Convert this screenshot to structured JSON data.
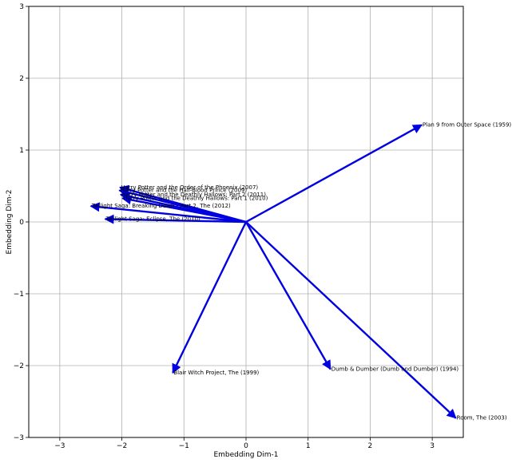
{
  "chart_data": {
    "type": "scatter",
    "title": "",
    "xlabel": "Embedding Dim-1",
    "ylabel": "Embedding Dim-2",
    "xlim": [
      -3.5,
      3.5
    ],
    "ylim": [
      -3,
      3
    ],
    "xticks": [
      -3,
      -2,
      -1,
      0,
      1,
      2,
      3
    ],
    "yticks": [
      -3,
      -2,
      -1,
      0,
      1,
      2,
      3
    ],
    "xtick_labels": [
      "−3",
      "−2",
      "−1",
      "0",
      "1",
      "2",
      "3"
    ],
    "ytick_labels": [
      "−3",
      "−2",
      "−1",
      "0",
      "1",
      "2",
      "3"
    ],
    "grid": true,
    "vector_color": "#0000e0",
    "origin": [
      0,
      0
    ],
    "vectors": [
      {
        "label": "Plan 9 from Outer Space (1959)",
        "x": 2.83,
        "y": 1.35
      },
      {
        "label": "Room, The (2003)",
        "x": 3.38,
        "y": -2.73
      },
      {
        "label": "Dumb & Dumber (Dumb and Dumber) (1994)",
        "x": 1.36,
        "y": -2.05
      },
      {
        "label": "Blair Witch Project, The (1999)",
        "x": -1.18,
        "y": -2.1
      },
      {
        "label": "Harry Potter and the Order of the Phoenix (2007)",
        "x": -2.03,
        "y": 0.48
      },
      {
        "label": "Harry Potter and the Half-Blood Prince (2009)",
        "x": -2.04,
        "y": 0.44
      },
      {
        "label": "Harry Potter and the Deathly Hallows: Part 2 (2011)",
        "x": -2.02,
        "y": 0.38
      },
      {
        "label": "Harry Potter and the Deathly Hallows: Part 1 (2010)",
        "x": -1.99,
        "y": 0.33
      },
      {
        "label": "Twilight Saga: Breaking Dawn - Part 2, The (2012)",
        "x": -2.5,
        "y": 0.22
      },
      {
        "label": "Twilight Saga: Eclipse, The (2010)",
        "x": -2.27,
        "y": 0.04
      }
    ]
  }
}
